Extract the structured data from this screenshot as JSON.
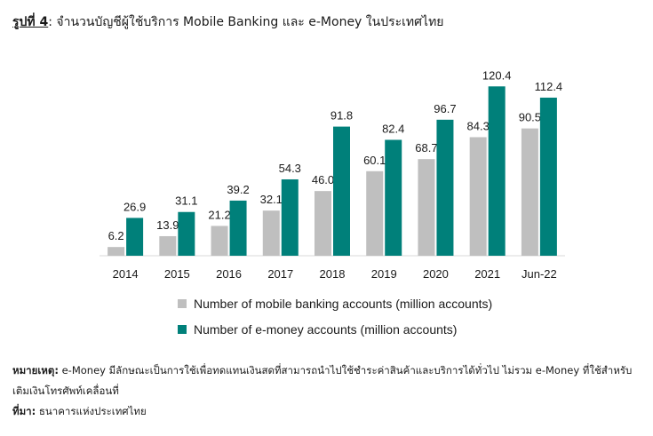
{
  "title": {
    "figure_label": "รูปที่ 4",
    "text": ": จำนวนบัญชีผู้ใช้บริการ Mobile Banking และ e-Money ในประเทศไทย"
  },
  "colors": {
    "mobile": "#bfbfbf",
    "emoney": "#00807a",
    "axis": "#d9d9d9"
  },
  "chart_data": {
    "type": "bar",
    "categories": [
      "2014",
      "2015",
      "2016",
      "2017",
      "2018",
      "2019",
      "2020",
      "2021",
      "Jun-22"
    ],
    "series": [
      {
        "name": "Number of mobile banking accounts (million accounts)",
        "values": [
          6.2,
          13.9,
          21.2,
          32.1,
          46.0,
          60.1,
          68.7,
          84.3,
          90.5
        ]
      },
      {
        "name": "Number of e-money accounts (million accounts)",
        "values": [
          26.9,
          31.1,
          39.2,
          54.3,
          91.8,
          82.4,
          96.7,
          120.4,
          112.4
        ]
      }
    ],
    "value_labels": [
      [
        "6.2",
        "13.9",
        "21.2",
        "32.1",
        "46.0",
        "60.1",
        "68.7",
        "84.3",
        "90.5"
      ],
      [
        "26.9",
        "31.1",
        "39.2",
        "54.3",
        "91.8",
        "82.4",
        "96.7",
        "120.4",
        "112.4"
      ]
    ],
    "title": "",
    "xlabel": "",
    "ylabel": "",
    "ylim": [
      0,
      130
    ],
    "grid": false,
    "legend_position": "bottom"
  },
  "notes": {
    "remark_label": "หมายเหตุ:",
    "remark_text": " e-Money มีลักษณะเป็นการใช้เพื่อทดแทนเงินสดที่สามารถนำไปใช้ชำระค่าสินค้าและบริการได้ทั่วไป ไม่รวม e-Money ที่ใช้สำหรับเติมเงินโทรศัพท์เคลื่อนที่",
    "source_label": "ที่มา:",
    "source_text": " ธนาคารแห่งประเทศไทย"
  }
}
